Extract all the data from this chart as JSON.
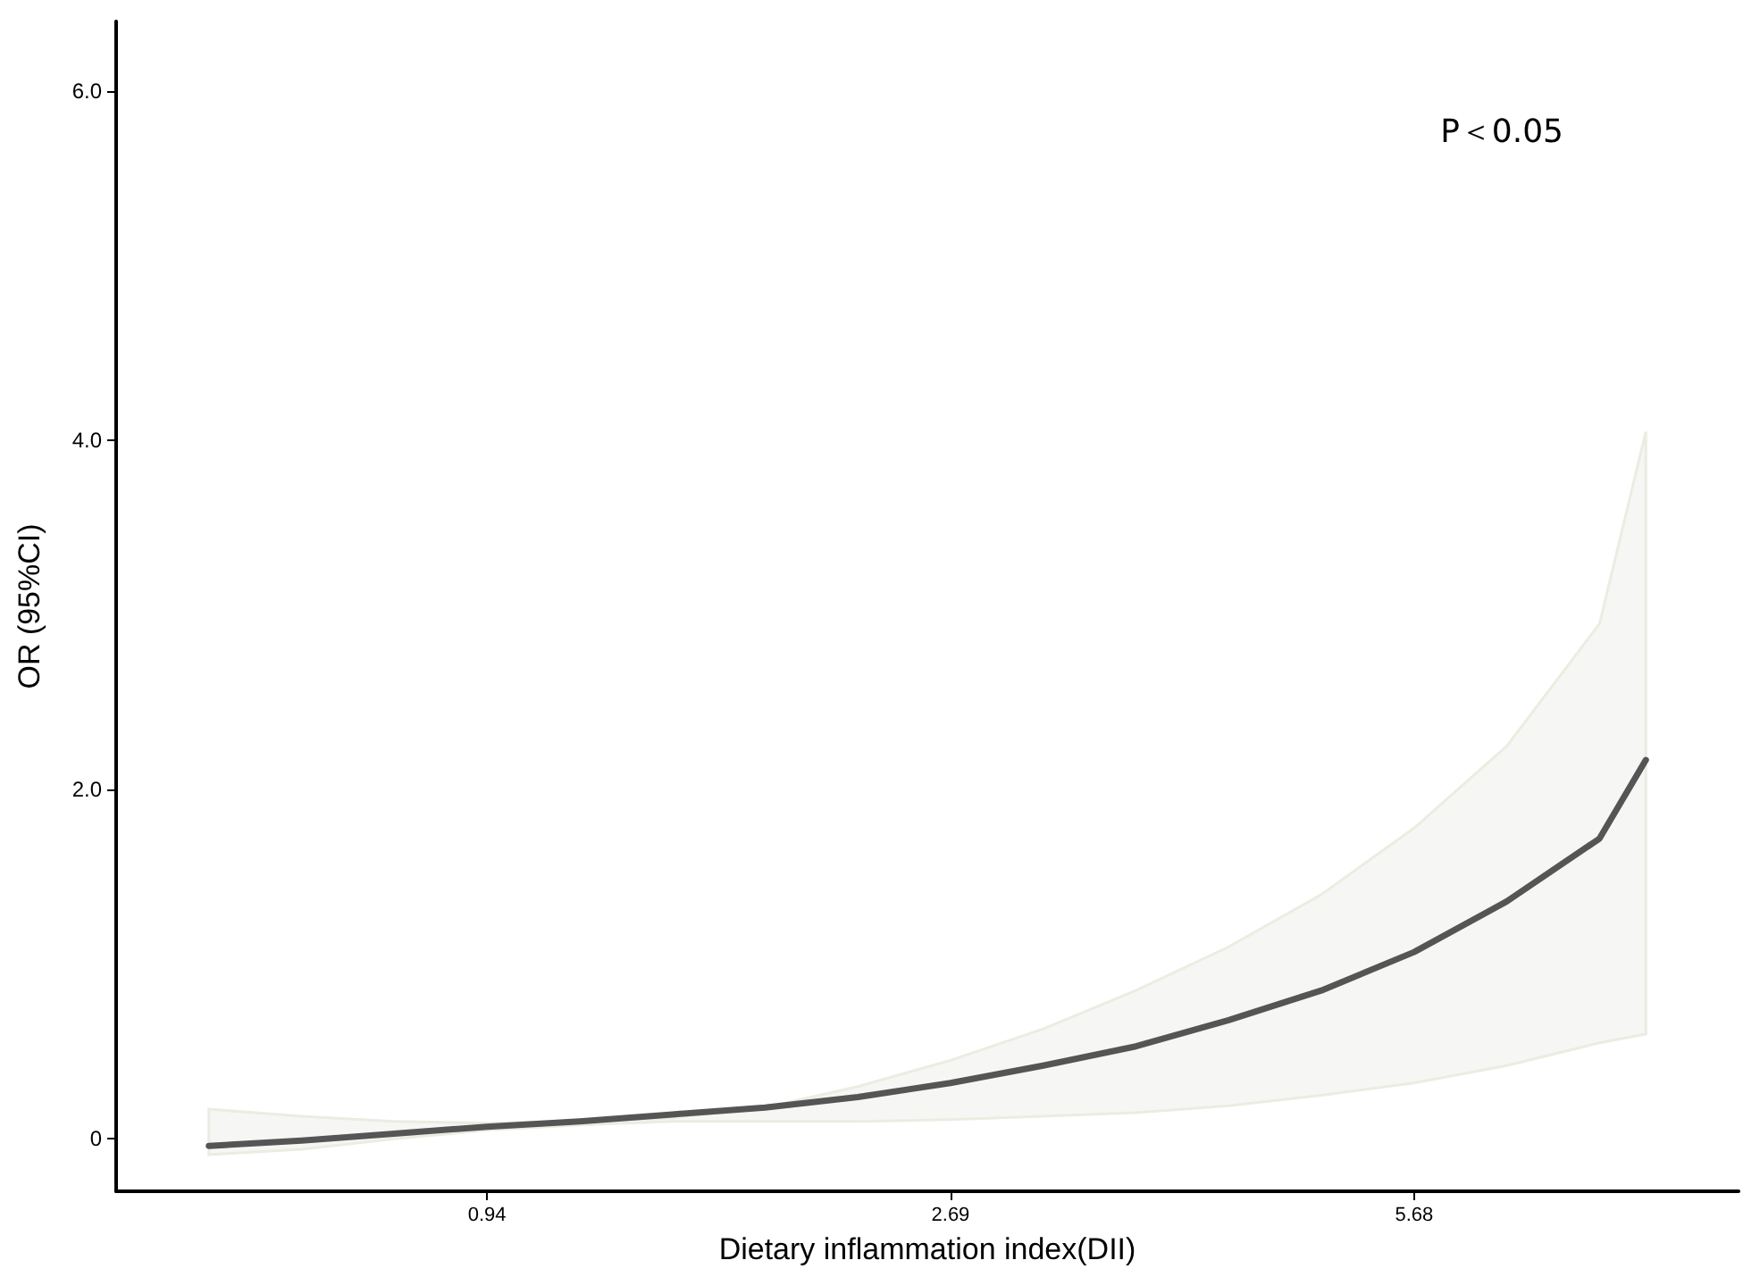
{
  "chart_data": {
    "type": "line",
    "xlabel": "Dietary inflammation index(DII)",
    "ylabel": "OR (95%CI)",
    "categories": [
      null,
      null,
      null,
      null,
      null,
      null,
      null,
      null,
      "0.94",
      null,
      null,
      null,
      null,
      null,
      null,
      null,
      null,
      null,
      "2.69",
      null,
      null,
      null,
      null,
      null,
      null,
      null,
      null,
      null,
      "5.68",
      null,
      null,
      null,
      null,
      null,
      null,
      null
    ],
    "series": [
      {
        "color": "#555555",
        "values": [
          null,
          null,
          -0.04,
          null,
          -0.01,
          null,
          0.03,
          null,
          0.07,
          null,
          0.1,
          null,
          0.14,
          null,
          0.18,
          null,
          0.24,
          null,
          0.32,
          null,
          0.42,
          null,
          0.53,
          null,
          0.68,
          null,
          0.85,
          null,
          1.07,
          null,
          1.36,
          null,
          1.72,
          2.17,
          null,
          null
        ],
        "lower": [
          null,
          null,
          -0.09,
          null,
          -0.06,
          null,
          0.0,
          null,
          0.05,
          null,
          0.08,
          null,
          0.1,
          null,
          0.1,
          null,
          0.1,
          null,
          0.11,
          null,
          0.13,
          null,
          0.15,
          null,
          0.19,
          null,
          0.25,
          null,
          0.32,
          null,
          0.42,
          null,
          0.55,
          0.6,
          null,
          null
        ],
        "upper": [
          null,
          null,
          0.17,
          null,
          0.13,
          null,
          0.1,
          null,
          0.09,
          null,
          0.1,
          null,
          0.12,
          null,
          0.18,
          null,
          0.3,
          null,
          0.45,
          null,
          0.63,
          null,
          0.85,
          null,
          1.1,
          null,
          1.4,
          null,
          1.78,
          null,
          2.25,
          null,
          2.95,
          4.05,
          null,
          null
        ]
      }
    ],
    "ylim": [
      -0.3,
      6.4
    ],
    "yticks": [
      0,
      {
        "value": 2,
        "label": "2.0"
      },
      {
        "value": 4,
        "label": "4.0"
      },
      {
        "value": 6,
        "label": "6.0"
      }
    ],
    "annotations": [
      "P＜0.05"
    ],
    "grid": false,
    "marker": "none",
    "line_style": "solid"
  }
}
